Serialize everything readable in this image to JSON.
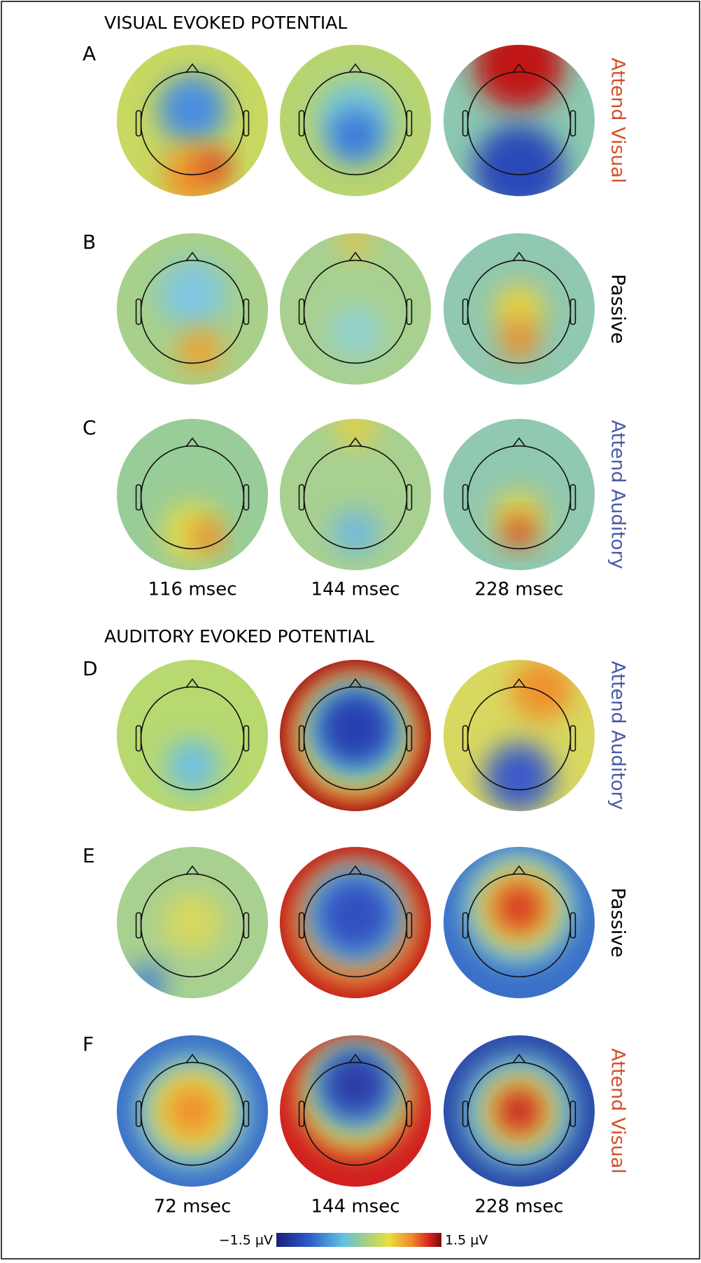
{
  "sections": [
    {
      "title": "VISUAL EVOKED POTENTIAL",
      "rows": [
        {
          "letter": "A",
          "condition": "Attend Visual",
          "color": "#d4502a"
        },
        {
          "letter": "B",
          "condition": "Passive",
          "color": "#000000"
        },
        {
          "letter": "C",
          "condition": "Attend Auditory",
          "color": "#4a5aa8"
        }
      ],
      "times": [
        "116 msec",
        "144 msec",
        "228 msec"
      ]
    },
    {
      "title": "AUDITORY EVOKED POTENTIAL",
      "rows": [
        {
          "letter": "D",
          "condition": "Attend Auditory",
          "color": "#4a5aa8"
        },
        {
          "letter": "E",
          "condition": "Passive",
          "color": "#000000"
        },
        {
          "letter": "F",
          "condition": "Attend Visual",
          "color": "#d4502a"
        }
      ],
      "times": [
        "72 msec",
        "144 msec",
        "228 msec"
      ]
    }
  ],
  "colorbar": {
    "min_label": "−1.5 µV",
    "max_label": "1.5 µV"
  }
}
